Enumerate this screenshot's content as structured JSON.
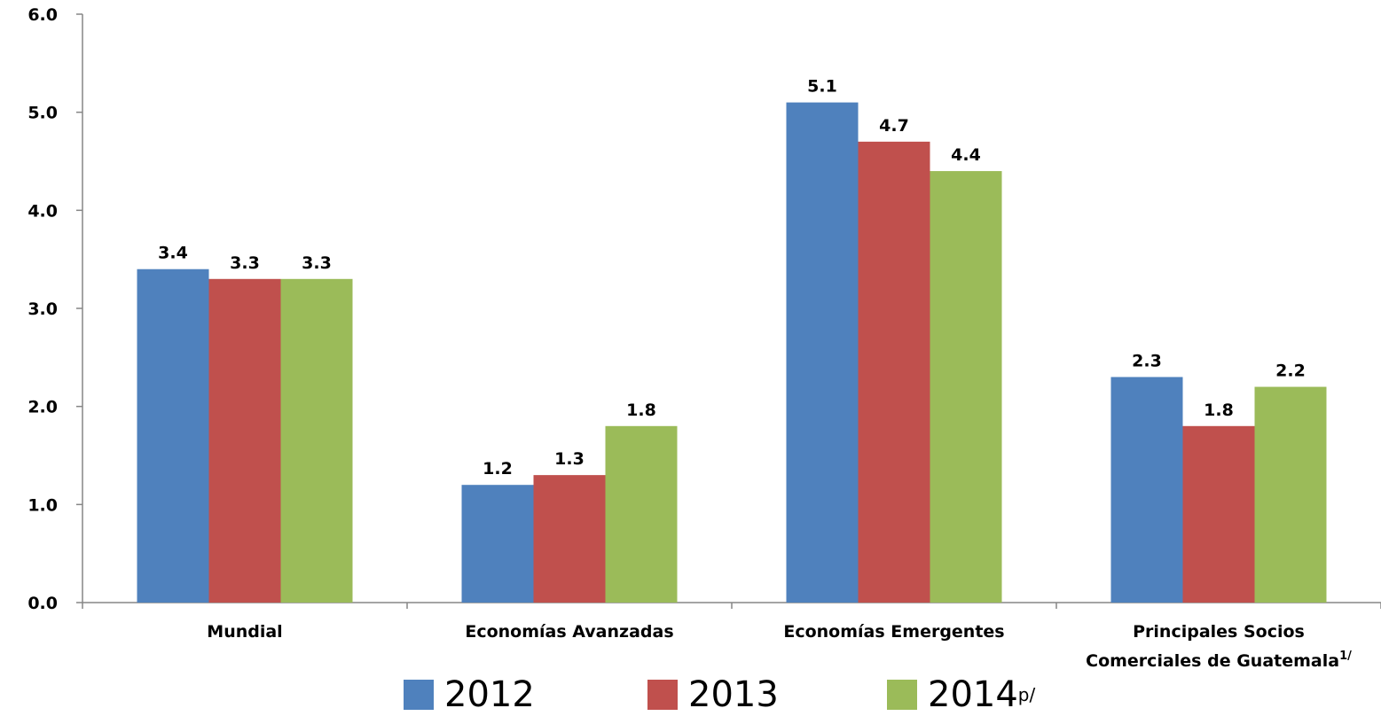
{
  "chart_data": {
    "type": "bar",
    "categories": [
      "Mundial",
      "Economías Avanzadas",
      "Economías Emergentes",
      "Principales Socios Comerciales de Guatemala"
    ],
    "category_superscripts": [
      null,
      null,
      null,
      "1/"
    ],
    "series": [
      {
        "name": "2012",
        "color": "#4f81bd",
        "values": [
          3.4,
          1.2,
          5.1,
          2.3
        ]
      },
      {
        "name": "2013",
        "color": "#c0504d",
        "values": [
          3.3,
          1.3,
          4.7,
          1.8
        ]
      },
      {
        "name": "2014",
        "name_superscript": "p/",
        "color": "#9bbb59",
        "values": [
          3.3,
          1.8,
          4.4,
          2.2
        ]
      }
    ],
    "ylim": [
      0,
      6
    ],
    "yticks": [
      {
        "value": 0,
        "label": "0.0"
      },
      {
        "value": 1,
        "label": "1.0"
      },
      {
        "value": 2,
        "label": "2.0"
      },
      {
        "value": 3,
        "label": "3.0"
      },
      {
        "value": 4,
        "label": "4.0"
      },
      {
        "value": 5,
        "label": "5.0"
      },
      {
        "value": 6,
        "label": "6.0"
      }
    ],
    "grid": false,
    "legend": "bottom"
  }
}
